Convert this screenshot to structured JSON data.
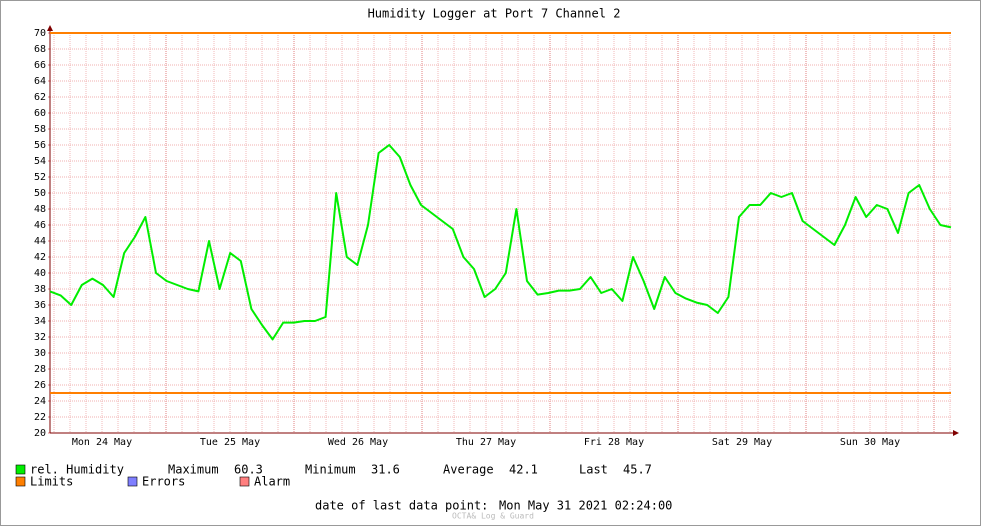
{
  "chart_data": {
    "type": "line",
    "title": "Humidity Logger at Port 7 Channel 2",
    "ylim": [
      20,
      70
    ],
    "yticks": [
      20,
      22,
      24,
      26,
      28,
      30,
      32,
      34,
      36,
      38,
      40,
      42,
      44,
      46,
      48,
      50,
      52,
      54,
      56,
      58,
      60,
      62,
      64,
      66,
      68,
      70
    ],
    "grid": true,
    "x_labels": [
      "Mon 24 May",
      "Tue 25 May",
      "Wed 26 May",
      "Thu 27 May",
      "Fri 28 May",
      "Sat 29 May",
      "Sun 30 May"
    ],
    "series": [
      {
        "name": "rel. Humidity",
        "color": "#00ee00",
        "values": [
          37.7,
          37.2,
          36,
          38.5,
          39.3,
          38.5,
          37,
          42.5,
          44.5,
          47,
          40,
          39,
          38.5,
          38,
          37.7,
          44,
          38,
          42.5,
          41.5,
          35.5,
          33.5,
          31.7,
          33.8,
          33.8,
          34,
          34,
          34.5,
          50,
          42,
          41,
          46,
          55,
          56,
          54.5,
          51,
          48.5,
          47.5,
          46.5,
          45.5,
          42,
          40.5,
          37,
          38,
          40,
          48,
          39,
          37.3,
          37.5,
          37.8,
          37.8,
          38,
          39.5,
          37.5,
          38,
          36.5,
          42,
          39,
          35.5,
          39.5,
          37.5,
          36.8,
          36.3,
          36,
          35,
          37,
          47,
          48.5,
          48.5,
          50,
          49.5,
          50,
          46.5,
          45.5,
          44.5,
          43.5,
          46,
          49.5,
          47,
          48.5,
          48,
          45,
          50,
          51,
          48,
          46,
          45.7
        ]
      }
    ],
    "limits": {
      "name": "Limits",
      "color": "#ff7f00",
      "values": [
        70,
        25
      ]
    },
    "legend_extra": [
      {
        "name": "Errors",
        "color": "#7f7fff"
      },
      {
        "name": "Alarm",
        "color": "#ff7f7f"
      }
    ],
    "stats": [
      {
        "label": "Maximum",
        "value": 60.3
      },
      {
        "label": "Minimum",
        "value": 31.6
      },
      {
        "label": "Average",
        "value": 42.1
      },
      {
        "label": "Last",
        "value": 45.7
      }
    ],
    "footer_label": "date of last data point:",
    "footer_value": "Mon May 31 2021 02:24:00",
    "watermark": "OCTA& Log & Guard"
  }
}
